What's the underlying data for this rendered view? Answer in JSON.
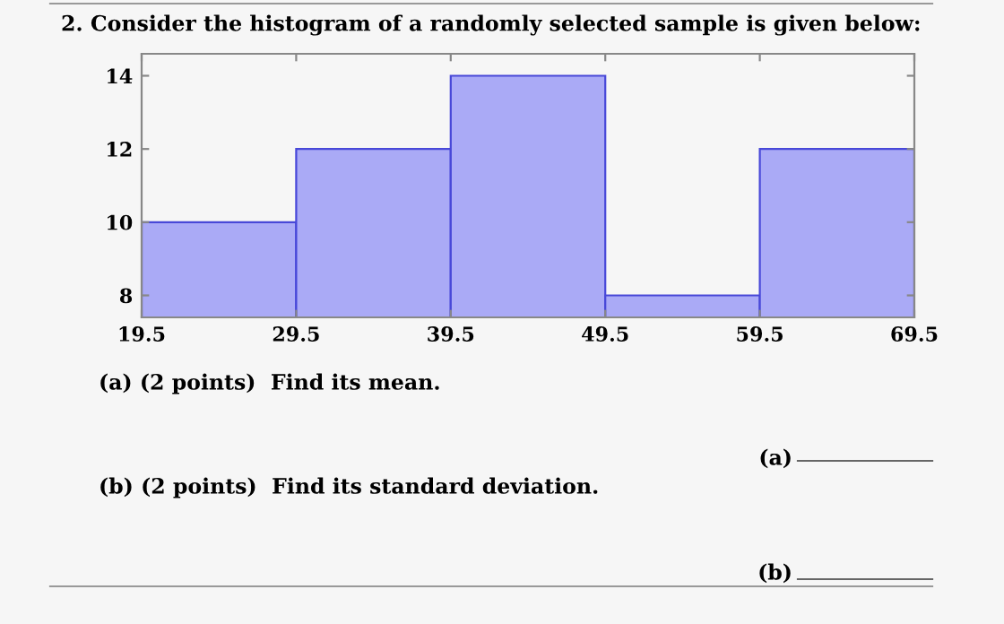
{
  "chart_data": {
    "type": "histogram",
    "title": "2. Consider the histogram of a randomly selected sample is given below:",
    "bins": [
      19.5,
      29.5,
      39.5,
      49.5,
      59.5,
      69.5
    ],
    "values": [
      10,
      12,
      14,
      8,
      12
    ],
    "color": "#aaaaf6",
    "xlim": [
      19.5,
      69.5
    ],
    "xticks": [
      19.5,
      29.5,
      39.5,
      49.5,
      59.5,
      69.5
    ],
    "ylim": [
      7.4,
      14.6
    ],
    "yticks": [
      8,
      10,
      12,
      14
    ],
    "grid": false,
    "legend": false,
    "annotations": [
      "(a) (2 points)  Find its mean.",
      "(a)",
      "(b) (2 points)  Find its standard deviation.",
      "(b)"
    ]
  }
}
